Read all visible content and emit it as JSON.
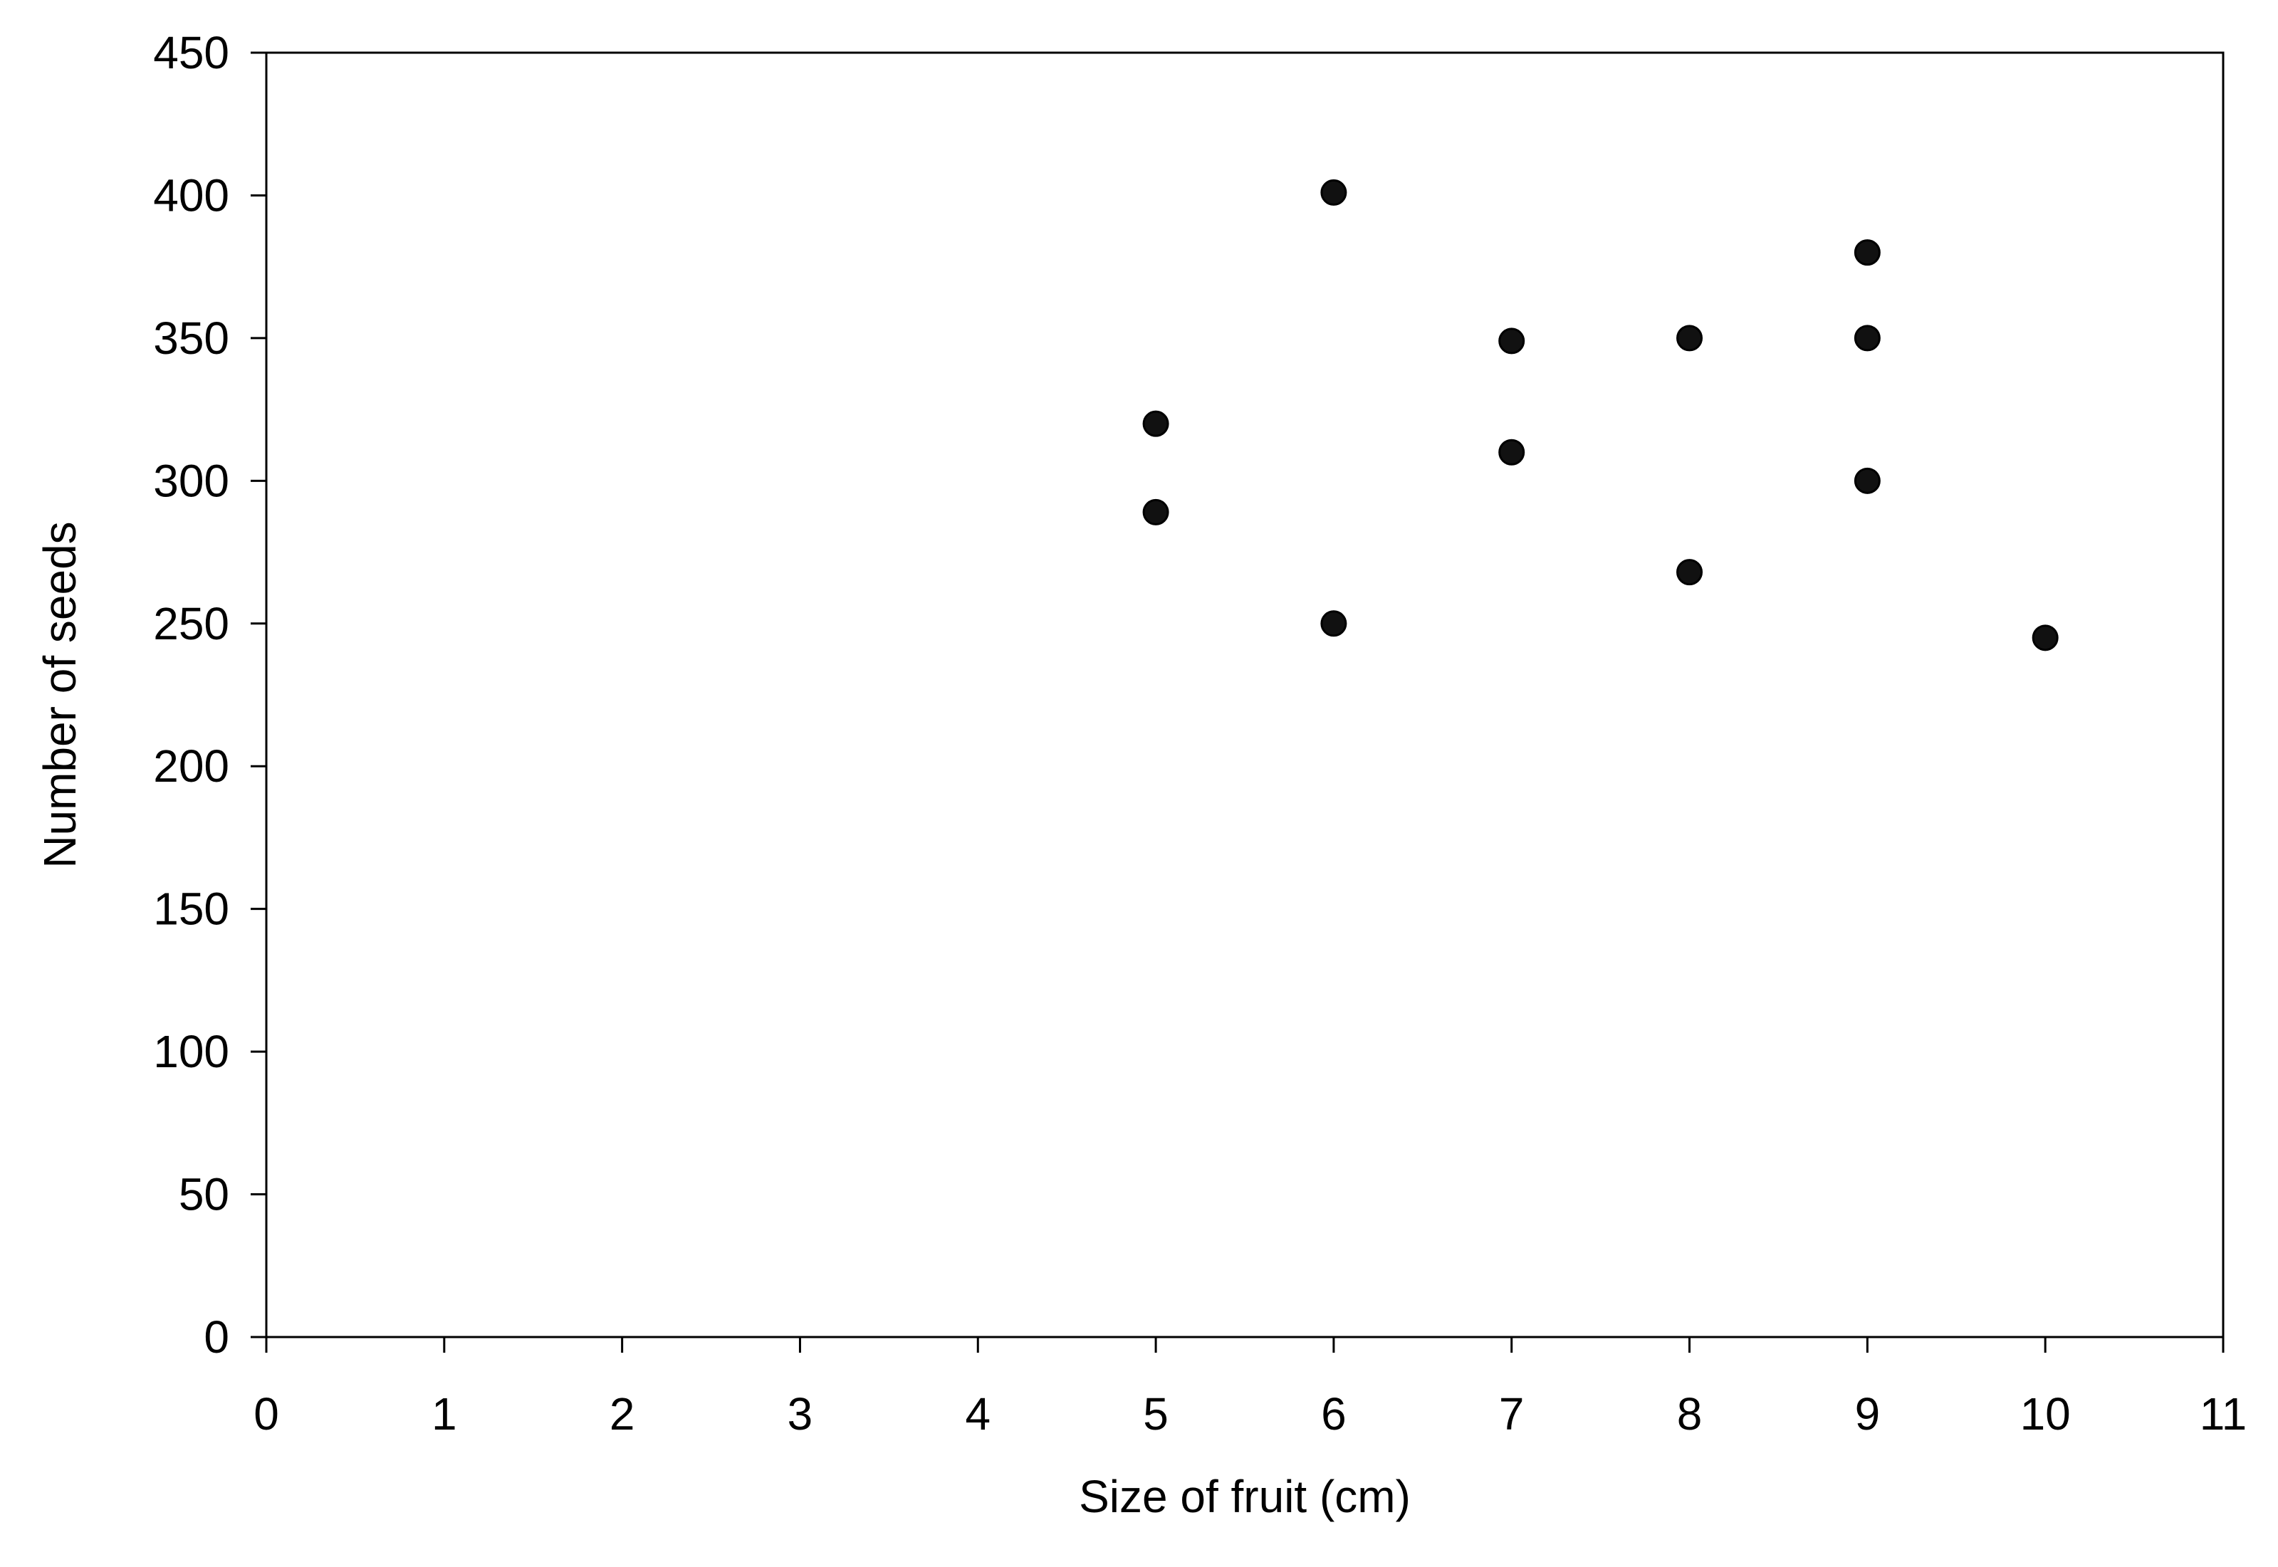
{
  "chart_data": {
    "type": "scatter",
    "title": "",
    "xlabel": "Size of fruit (cm)",
    "ylabel": "Number of seeds",
    "xlim": [
      0,
      11
    ],
    "ylim": [
      0,
      450
    ],
    "xticks": [
      "0",
      "1",
      "2",
      "3",
      "4",
      "5",
      "6",
      "7",
      "8",
      "9",
      "10",
      "11"
    ],
    "yticks": [
      "0",
      "50",
      "100",
      "150",
      "200",
      "250",
      "300",
      "350",
      "400",
      "450"
    ],
    "grid": false,
    "legend": "none",
    "marker_color": "#111111",
    "series": [
      {
        "points": [
          {
            "x": 5,
            "y": 320
          },
          {
            "x": 5,
            "y": 289
          },
          {
            "x": 6,
            "y": 401
          },
          {
            "x": 6,
            "y": 250
          },
          {
            "x": 7,
            "y": 349
          },
          {
            "x": 7,
            "y": 310
          },
          {
            "x": 8,
            "y": 350
          },
          {
            "x": 8,
            "y": 268
          },
          {
            "x": 9,
            "y": 380
          },
          {
            "x": 9,
            "y": 350
          },
          {
            "x": 9,
            "y": 300
          },
          {
            "x": 10,
            "y": 245
          }
        ]
      }
    ]
  }
}
